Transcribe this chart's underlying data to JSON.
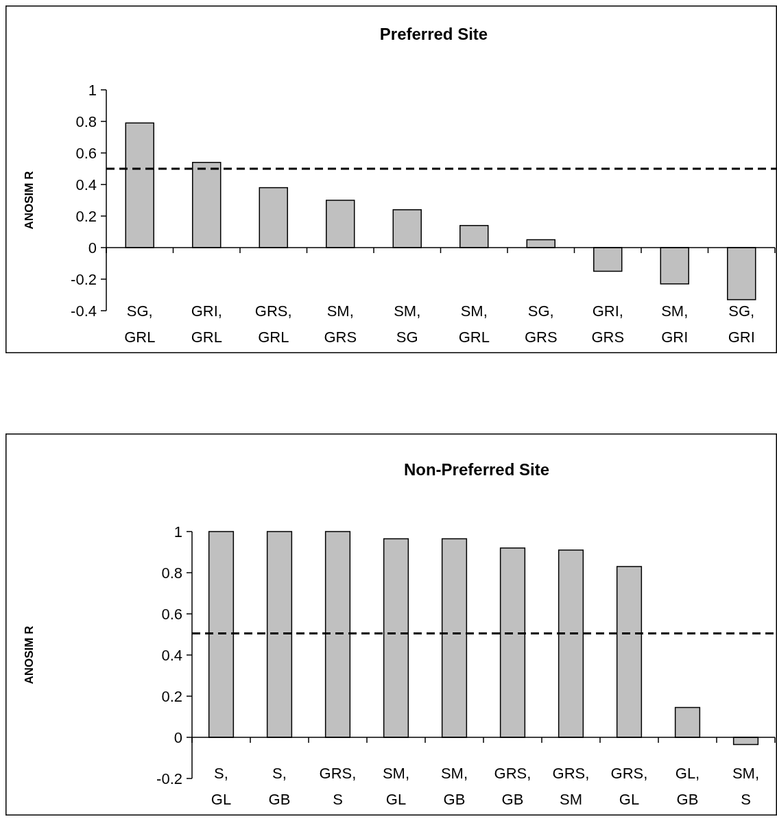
{
  "chart_data": [
    {
      "type": "bar",
      "title": "Preferred Site",
      "ylabel": "ANOSIM R",
      "categories": [
        "SG, GRL",
        "GRI, GRL",
        "GRS, GRL",
        "SM, GRS",
        "SM, SG",
        "SM, GRL",
        "SG, GRS",
        "GRI, GRS",
        "SM, GRI",
        "SG, GRI"
      ],
      "values": [
        0.79,
        0.54,
        0.38,
        0.3,
        0.24,
        0.14,
        0.05,
        -0.15,
        -0.23,
        -0.33
      ],
      "color": "#c0c0c0",
      "ylim": [
        -0.4,
        1
      ],
      "yticks": [
        -0.4,
        -0.2,
        0,
        0.2,
        0.4,
        0.6,
        0.8,
        1
      ],
      "ref_lines": [
        {
          "axis": "y",
          "value": 0.5,
          "line_style": "dashed",
          "color": "#000000"
        }
      ]
    },
    {
      "type": "bar",
      "title": "Non-Preferred Site",
      "ylabel": "ANOSIM R",
      "categories": [
        "S, GL",
        "S, GB",
        "GRS, S",
        "SM, GL",
        "SM, GB",
        "GRS, GB",
        "GRS, SM",
        "GRS, GL",
        "GL, GB",
        "SM, S"
      ],
      "values": [
        1,
        1,
        1,
        0.965,
        0.965,
        0.92,
        0.91,
        0.83,
        0.145,
        -0.035
      ],
      "color": "#c0c0c0",
      "ylim": [
        -0.2,
        1
      ],
      "yticks": [
        -0.2,
        0,
        0.2,
        0.4,
        0.6,
        0.8,
        1
      ],
      "ref_lines": [
        {
          "axis": "y",
          "value": 0.505,
          "line_style": "dashed",
          "color": "#000000"
        }
      ]
    }
  ]
}
